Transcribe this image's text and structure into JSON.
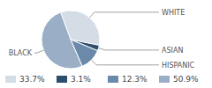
{
  "chart_data": {
    "type": "pie",
    "categories": [
      "WHITE",
      "ASIAN",
      "HISPANIC",
      "BLACK"
    ],
    "values": [
      33.7,
      3.1,
      12.3,
      50.9
    ],
    "value_labels": [
      "33.7%",
      "3.1%",
      "12.3%",
      "50.9%"
    ],
    "colors": [
      "#d4dce6",
      "#2e4e6e",
      "#6b89a8",
      "#9aafc6"
    ]
  }
}
